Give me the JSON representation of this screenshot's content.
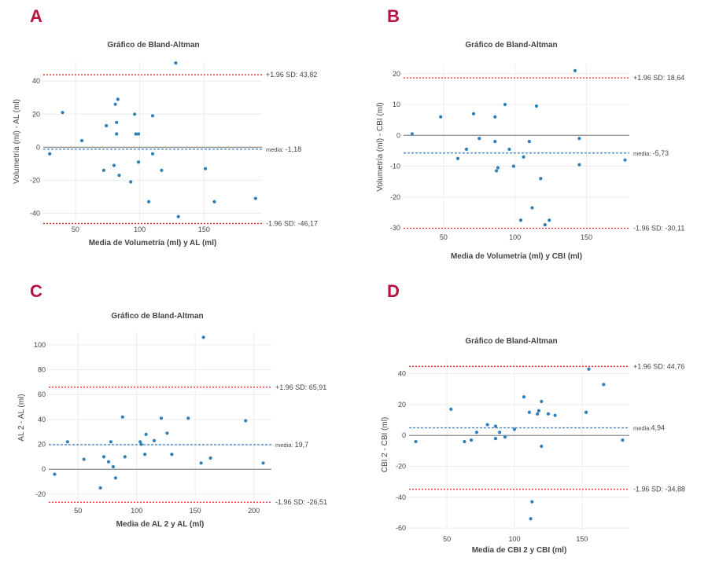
{
  "colors": {
    "point": "#2e7fb8",
    "limit_line": "#e8262c",
    "mean_line": "#3b7dc4",
    "zero_line": "#8a8a8a",
    "grid": "#ececec",
    "panel_letter": "#b5123f"
  },
  "chart_data": [
    {
      "panel": "A",
      "type": "scatter",
      "title": "Gráfico de Bland-Altman",
      "xlabel": "Media de Volumetría (ml) y AL (ml)",
      "ylabel": "Volumetría (ml) - AL (ml)",
      "xlim": [
        25,
        195
      ],
      "ylim": [
        -45,
        52
      ],
      "xticks": [
        50,
        100,
        150
      ],
      "yticks": [
        -40,
        -20,
        0,
        20,
        40
      ],
      "xtick_labels": [
        "50",
        "100",
        "150"
      ],
      "ytick_labels": [
        "-40",
        "-20",
        "0",
        "20",
        "40"
      ],
      "grid": true,
      "mean": -1.18,
      "upper_loa": 43.82,
      "lower_loa": -46.17,
      "upper_label": "+1.96 SD: 43,82",
      "lower_label": "-1.96 SD: -46,17",
      "mean_prefix": "media: ",
      "mean_value_label": "-1,18",
      "points": [
        [
          30,
          -4
        ],
        [
          40,
          21
        ],
        [
          55,
          4
        ],
        [
          72,
          -14
        ],
        [
          74,
          13
        ],
        [
          80,
          -11
        ],
        [
          81,
          26
        ],
        [
          82,
          8
        ],
        [
          82,
          15
        ],
        [
          83,
          29
        ],
        [
          84,
          -17
        ],
        [
          93,
          -21
        ],
        [
          96,
          20
        ],
        [
          97,
          8
        ],
        [
          99,
          8
        ],
        [
          99,
          -9
        ],
        [
          107,
          -33
        ],
        [
          110,
          -4
        ],
        [
          110,
          19
        ],
        [
          117,
          -14
        ],
        [
          128,
          51
        ],
        [
          130,
          -42
        ],
        [
          151,
          -13
        ],
        [
          158,
          -33
        ],
        [
          190,
          -31
        ]
      ]
    },
    {
      "panel": "B",
      "type": "scatter",
      "title": "Gráfico de Bland-Altman",
      "xlabel": "Media de Volumetría (ml) y CBI (ml)",
      "ylabel": "Volumetría (ml) - CBI (ml)",
      "xlim": [
        22,
        180
      ],
      "ylim": [
        -30.5,
        23
      ],
      "xticks": [
        50,
        100,
        150
      ],
      "yticks": [
        -30,
        -20,
        -10,
        0,
        10,
        20
      ],
      "xtick_labels": [
        "50",
        "100",
        "150"
      ],
      "ytick_labels": [
        "-30",
        "-20",
        "-10",
        "0",
        "10",
        "20"
      ],
      "grid": true,
      "mean": -5.73,
      "upper_loa": 18.64,
      "lower_loa": -30.11,
      "upper_label": "+1.96 SD: 18,64",
      "lower_label": "-1.96 SD: -30,11",
      "mean_prefix": "media: ",
      "mean_value_label": "-5,73",
      "points": [
        [
          28,
          0.5
        ],
        [
          48,
          6
        ],
        [
          60,
          -7.5
        ],
        [
          66,
          -4.5
        ],
        [
          71,
          7
        ],
        [
          75,
          -1
        ],
        [
          86,
          6
        ],
        [
          86,
          -2
        ],
        [
          87,
          -11.5
        ],
        [
          88,
          -10.5
        ],
        [
          93,
          10
        ],
        [
          96,
          -4.5
        ],
        [
          99,
          -10
        ],
        [
          104,
          -27.5
        ],
        [
          106,
          -7
        ],
        [
          110,
          -2
        ],
        [
          112,
          -23.5
        ],
        [
          115,
          9.5
        ],
        [
          118,
          -14
        ],
        [
          121,
          -29
        ],
        [
          124,
          -27.5
        ],
        [
          142,
          21
        ],
        [
          145,
          -1
        ],
        [
          145,
          -9.5
        ],
        [
          177,
          -8
        ]
      ]
    },
    {
      "panel": "C",
      "type": "scatter",
      "title": "Gráfico de Bland-Altman",
      "xlabel": "Media de AL 2 y AL (ml)",
      "ylabel": "AL 2 - AL (ml)",
      "xlim": [
        25,
        215
      ],
      "ylim": [
        -27,
        110
      ],
      "xticks": [
        50,
        100,
        150,
        200
      ],
      "yticks": [
        -20,
        0,
        20,
        40,
        60,
        80,
        100
      ],
      "xtick_labels": [
        "50",
        "100",
        "150",
        "200"
      ],
      "ytick_labels": [
        "-20",
        "0",
        "20",
        "40",
        "60",
        "80",
        "100"
      ],
      "grid": true,
      "mean": 19.7,
      "upper_loa": 65.91,
      "lower_loa": -26.51,
      "upper_label": "+1.96 SD: 65,91",
      "lower_label": "-1.96 SD: -26,51",
      "mean_prefix": "media: ",
      "mean_value_label": "19,7",
      "points": [
        [
          30,
          -4
        ],
        [
          41,
          22
        ],
        [
          55,
          8
        ],
        [
          69,
          -15
        ],
        [
          72,
          10
        ],
        [
          76,
          6
        ],
        [
          78,
          22
        ],
        [
          80,
          2
        ],
        [
          82,
          -7
        ],
        [
          88,
          42
        ],
        [
          90,
          10
        ],
        [
          103,
          22
        ],
        [
          104,
          20
        ],
        [
          107,
          12
        ],
        [
          108,
          28
        ],
        [
          115,
          23
        ],
        [
          121,
          41
        ],
        [
          126,
          29
        ],
        [
          130,
          12
        ],
        [
          144,
          41
        ],
        [
          155,
          5
        ],
        [
          157,
          106
        ],
        [
          163,
          9
        ],
        [
          193,
          39
        ],
        [
          208,
          5
        ]
      ]
    },
    {
      "panel": "D",
      "type": "scatter",
      "title": "Gráfico de Bland-Altman",
      "xlabel": "Media de CBI 2 y CBI (ml)",
      "ylabel": "CBI 2 - CBI (ml)",
      "xlim": [
        22,
        185
      ],
      "ylim": [
        -62,
        50
      ],
      "xticks": [
        50,
        100,
        150
      ],
      "yticks": [
        -60,
        -40,
        -20,
        0,
        20,
        40
      ],
      "xtick_labels": [
        "50",
        "100",
        "150"
      ],
      "ytick_labels": [
        "-60",
        "-40",
        "-20",
        "0",
        "20",
        "40"
      ],
      "grid": true,
      "mean": 4.94,
      "upper_loa": 44.76,
      "lower_loa": -34.88,
      "upper_label": "+1.96 SD: 44,76",
      "lower_label": "-1.96 SD: -34,88",
      "mean_prefix": "media:",
      "mean_value_label": "4,94",
      "points": [
        [
          27,
          -4
        ],
        [
          53,
          17
        ],
        [
          63,
          -4
        ],
        [
          68,
          -3
        ],
        [
          72,
          2
        ],
        [
          80,
          7
        ],
        [
          86,
          6
        ],
        [
          86,
          -2
        ],
        [
          89,
          2
        ],
        [
          93,
          -1
        ],
        [
          100,
          4
        ],
        [
          107,
          25
        ],
        [
          111,
          15
        ],
        [
          112,
          -54
        ],
        [
          113,
          -43
        ],
        [
          117,
          14
        ],
        [
          118,
          16
        ],
        [
          120,
          22
        ],
        [
          120,
          -7
        ],
        [
          125,
          14
        ],
        [
          130,
          13
        ],
        [
          153,
          15
        ],
        [
          155,
          43
        ],
        [
          166,
          33
        ],
        [
          180,
          -3
        ]
      ]
    }
  ]
}
